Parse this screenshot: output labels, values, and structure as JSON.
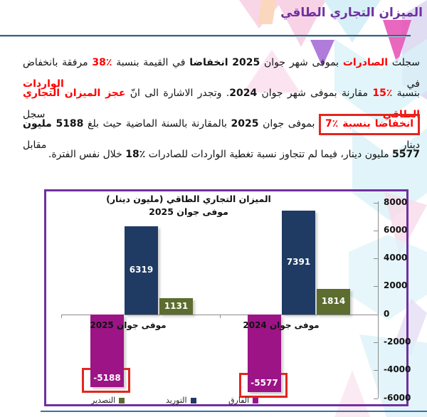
{
  "page": {
    "title": "الميزان التجاري الطاقي",
    "paragraph_lines": [
      [
        {
          "t": "سجلت "
        },
        {
          "t": "الصادرات",
          "c": "red",
          "b": true
        },
        {
          "t": " بموفى شهر جوان "
        },
        {
          "t": "2025",
          "b": true
        },
        {
          "t": " "
        },
        {
          "t": "انخفاضا",
          "b": true
        },
        {
          "t": " في القيمة بنسبة "
        },
        {
          "t": "٪38",
          "c": "red",
          "b": true
        },
        {
          "t": " مرفقة بانخفاض في "
        },
        {
          "t": "الواردات",
          "c": "red",
          "b": true
        }
      ],
      [
        {
          "t": "بنسبة "
        },
        {
          "t": "٪15",
          "c": "red",
          "b": true
        },
        {
          "t": " مقارنة بموفى شهر جوان "
        },
        {
          "t": "2024",
          "b": true
        },
        {
          "t": ". وتجدر الاشارة الى انّ "
        },
        {
          "t": "عجز الميزان التجاري الطاقي",
          "c": "red",
          "b": true
        },
        {
          "t": " سجل"
        }
      ],
      [
        {
          "t": "انخفاضا بنسبة ٪7",
          "c": "red",
          "b": true,
          "box": true
        },
        {
          "t": " بموفى جوان "
        },
        {
          "t": "2025",
          "b": true
        },
        {
          "t": " بالمقارنة بالسنة الماضية حيث بلغ "
        },
        {
          "t": "5188",
          "b": true
        },
        {
          "t": " "
        },
        {
          "t": "مليون",
          "b": true
        },
        {
          "t": " دينار مقابل"
        }
      ],
      [
        {
          "t": "5577",
          "b": true
        },
        {
          "t": " مليون دينار، فيما لم تتجاوز نسبة تغطية الواردات للصادرات "
        },
        {
          "t": "٪18",
          "b": true
        },
        {
          "t": " خلال نفس الفترة."
        }
      ]
    ]
  },
  "colors": {
    "title_purple": "#7030a0",
    "accent_red": "#ff0000",
    "chart_border": "#7030a0",
    "highlight_box_border": "#e3261d",
    "footer_line": "#3c71a8"
  },
  "chart_data": {
    "type": "bar",
    "title": "الميزان التجاري الطاقي (مليون دينار)",
    "subtitle": "موفى جوان 2025",
    "categories": [
      "موفى جوان 2025",
      "موفى جوان 2024"
    ],
    "series": [
      {
        "name": "الفارق",
        "color": "#9c1486",
        "values": [
          -5188,
          -5577
        ]
      },
      {
        "name": "التوريد",
        "color": "#1f3b63",
        "values": [
          6319,
          7391
        ]
      },
      {
        "name": "التصدير",
        "color": "#5c6d2f",
        "values": [
          1131,
          1814
        ]
      }
    ],
    "ylim": [
      -6000,
      8000
    ],
    "yticks": [
      8000,
      6000,
      4000,
      2000,
      0,
      -2000,
      -4000,
      -6000
    ],
    "axis_label_side": "right",
    "legend_order": [
      "التصدير",
      "التوريد",
      "الفارق"
    ],
    "highlighted_values": [
      -5188,
      -5577
    ],
    "grid": false
  }
}
